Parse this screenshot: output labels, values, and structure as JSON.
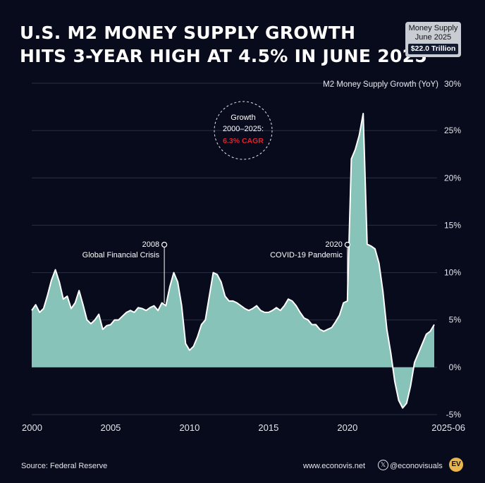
{
  "header": {
    "title_line1": "U.S. M2 Money Supply Growth",
    "title_line2": "Hits 3-Year High at 4.5% in June 2025"
  },
  "badge": {
    "line1": "Money Supply",
    "line2": "June 2025",
    "value": "$22.0 Trillion"
  },
  "callout": {
    "line1": "Growth",
    "line2": "2000–2025:",
    "line3": "6.3% CAGR",
    "highlight_color": "#e8202a"
  },
  "annotations": [
    {
      "year_label": "2008",
      "text": "Global Financial Crisis",
      "x": 2008.4
    },
    {
      "year_label": "2020",
      "text": "COVID-19 Pandemic",
      "x": 2020.0
    }
  ],
  "footer": {
    "source": "Source: Federal Reserve",
    "site": "www.econovis.net",
    "x_icon": "x-logo-icon",
    "handle": "@econovisuals",
    "logo": "EV"
  },
  "colors": {
    "background": "#080b1c",
    "area_fill": "#88c3b9",
    "line": "#ffffff",
    "logo": "#e8b64a"
  },
  "chart_data": {
    "type": "area",
    "title": "U.S. M2 Money Supply Growth Hits 3-Year High at 4.5% in June 2025",
    "ylabel": "M2 Money Supply Growth (YoY)",
    "y_unit": "%",
    "ylim": [
      -5,
      30
    ],
    "y_ticks": [
      "-5%",
      "0%",
      "5%",
      "10%",
      "15%",
      "20%",
      "25%",
      "30%"
    ],
    "x_ticks": [
      "2000",
      "2005",
      "2010",
      "2015",
      "2020",
      "2025-06"
    ],
    "grid": true,
    "series": [
      {
        "x": [
          2000.0,
          2000.25,
          2000.5,
          2000.75,
          2001.0,
          2001.25,
          2001.5,
          2001.75,
          2002.0,
          2002.25,
          2002.5,
          2002.75,
          2003.0,
          2003.25,
          2003.5,
          2003.75,
          2004.0,
          2004.25,
          2004.5,
          2004.75,
          2005.0,
          2005.25,
          2005.5,
          2005.75,
          2006.0,
          2006.25,
          2006.5,
          2006.75,
          2007.0,
          2007.25,
          2007.5,
          2007.75,
          2008.0,
          2008.25,
          2008.5,
          2008.75,
          2009.0,
          2009.25,
          2009.5,
          2009.75,
          2010.0,
          2010.25,
          2010.5,
          2010.75,
          2011.0,
          2011.25,
          2011.5,
          2011.75,
          2012.0,
          2012.25,
          2012.5,
          2012.75,
          2013.0,
          2013.25,
          2013.5,
          2013.75,
          2014.0,
          2014.25,
          2014.5,
          2014.75,
          2015.0,
          2015.25,
          2015.5,
          2015.75,
          2016.0,
          2016.25,
          2016.5,
          2016.75,
          2017.0,
          2017.25,
          2017.5,
          2017.75,
          2018.0,
          2018.25,
          2018.5,
          2018.75,
          2019.0,
          2019.25,
          2019.5,
          2019.75,
          2020.0,
          2020.25,
          2020.5,
          2020.75,
          2021.0,
          2021.25,
          2021.5,
          2021.75,
          2022.0,
          2022.25,
          2022.5,
          2022.75,
          2023.0,
          2023.25,
          2023.5,
          2023.75,
          2024.0,
          2024.25,
          2024.5,
          2024.75,
          2025.0,
          2025.25,
          2025.5
        ],
        "values": [
          6.0,
          6.6,
          5.8,
          6.2,
          7.6,
          9.2,
          10.3,
          9.0,
          7.2,
          7.5,
          6.2,
          6.8,
          8.1,
          6.6,
          5.0,
          4.6,
          5.0,
          5.6,
          4.0,
          4.4,
          4.5,
          5.0,
          5.0,
          5.4,
          5.8,
          6.0,
          5.8,
          6.3,
          6.2,
          6.0,
          6.3,
          6.5,
          6.0,
          6.8,
          6.5,
          8.5,
          10.0,
          9.0,
          6.5,
          2.5,
          1.8,
          2.2,
          3.2,
          4.5,
          5.0,
          7.5,
          10.0,
          9.8,
          9.0,
          7.5,
          7.0,
          7.0,
          6.8,
          6.5,
          6.2,
          6.0,
          6.2,
          6.5,
          6.0,
          5.8,
          5.8,
          6.0,
          6.3,
          6.0,
          6.5,
          7.2,
          7.0,
          6.5,
          5.8,
          5.2,
          5.0,
          4.5,
          4.5,
          4.0,
          3.8,
          4.0,
          4.2,
          4.8,
          5.5,
          6.8,
          7.0,
          22.0,
          23.0,
          24.5,
          26.8,
          13.0,
          12.8,
          12.5,
          11.0,
          8.0,
          4.0,
          1.5,
          -1.5,
          -3.5,
          -4.3,
          -3.8,
          -2.0,
          0.5,
          1.5,
          2.5,
          3.5,
          3.8,
          4.5
        ]
      }
    ]
  }
}
